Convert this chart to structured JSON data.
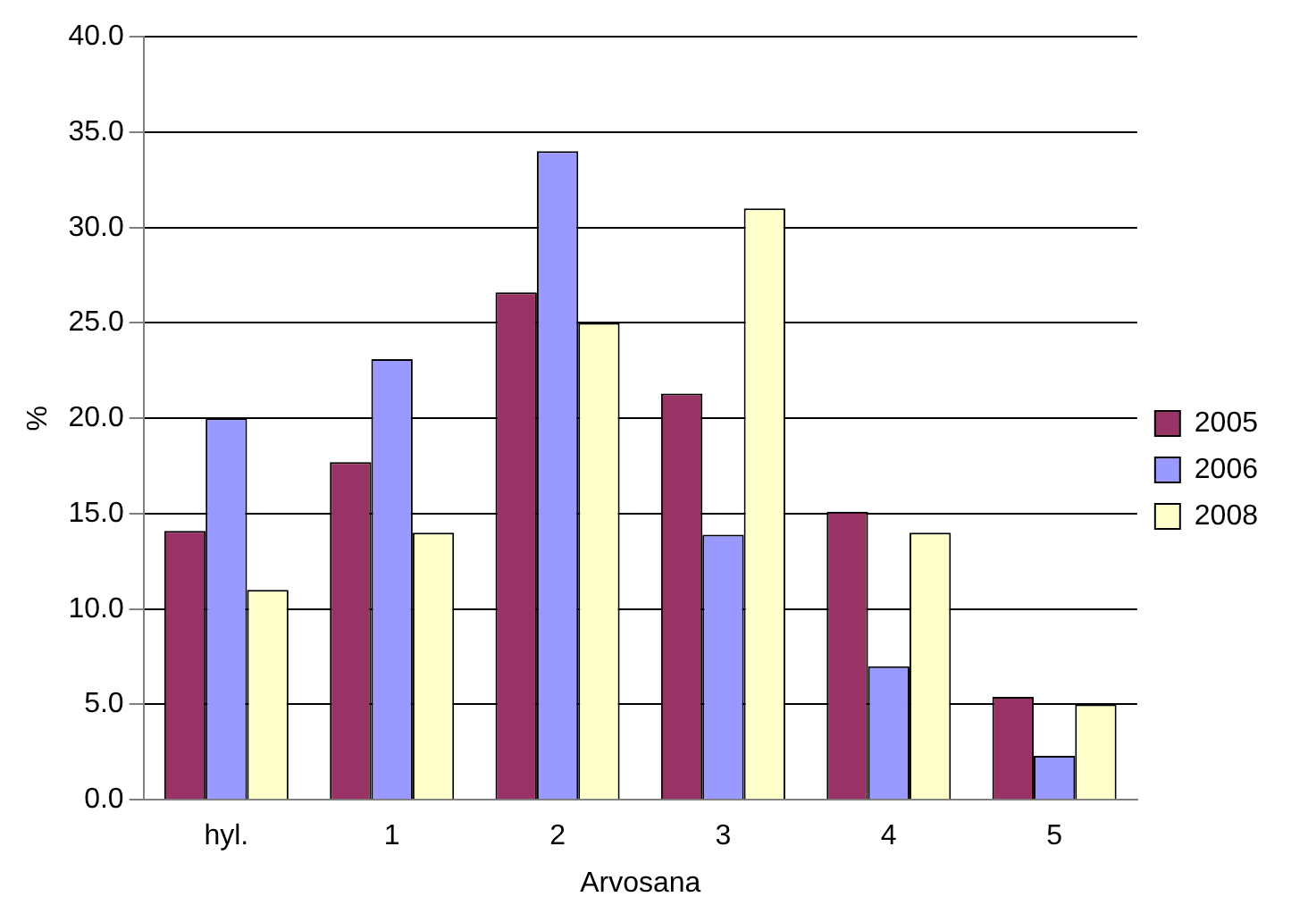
{
  "chart_data": {
    "type": "bar",
    "xlabel": "Arvosana",
    "ylabel": "%",
    "categories": [
      "hyl.",
      "1",
      "2",
      "3",
      "4",
      "5"
    ],
    "series": [
      {
        "name": "2005",
        "color": "#993366",
        "values": [
          14.1,
          17.7,
          26.6,
          21.3,
          15.1,
          5.4
        ]
      },
      {
        "name": "2006",
        "color": "#9999ff",
        "values": [
          20.0,
          23.1,
          34.0,
          13.9,
          7.0,
          2.3
        ]
      },
      {
        "name": "2008",
        "color": "#ffffcc",
        "values": [
          11.0,
          14.0,
          25.0,
          31.0,
          14.0,
          5.0
        ]
      }
    ],
    "ylim": [
      0,
      40
    ],
    "yticks": [
      {
        "value": 0,
        "label": "0.0"
      },
      {
        "value": 5,
        "label": "5.0"
      },
      {
        "value": 10,
        "label": "10.0"
      },
      {
        "value": 15,
        "label": "15.0"
      },
      {
        "value": 20,
        "label": "20.0"
      },
      {
        "value": 25,
        "label": "25.0"
      },
      {
        "value": 30,
        "label": "30.0"
      },
      {
        "value": 35,
        "label": "35.0"
      },
      {
        "value": 40,
        "label": "40.0"
      }
    ],
    "grid": "y",
    "legend": "right"
  }
}
